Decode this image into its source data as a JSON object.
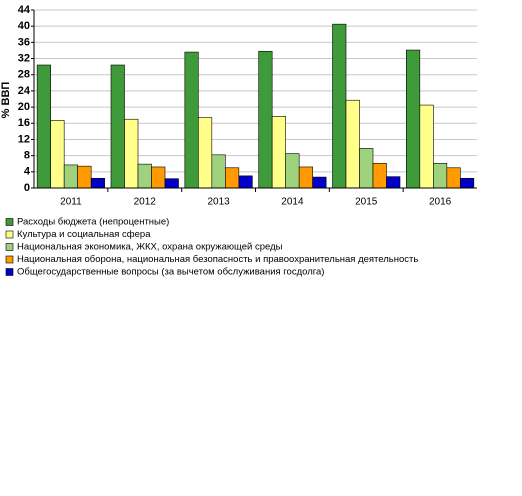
{
  "chart_data": {
    "type": "bar",
    "y_label": "% ВВП",
    "categories": [
      "2011",
      "2012",
      "2013",
      "2014",
      "2015",
      "2016"
    ],
    "series": [
      {
        "name": "Расходы бюджета (непроцентные)",
        "color": "#3f9a3a",
        "values": [
          30.4,
          30.4,
          33.6,
          33.8,
          40.5,
          34.1
        ]
      },
      {
        "name": "Культура и социальная сфера",
        "color": "#ffff8a",
        "values": [
          16.7,
          17.0,
          17.4,
          17.7,
          21.7,
          20.5
        ]
      },
      {
        "name": "Национальная экономика, ЖКХ, охрана окружающей среды",
        "color": "#9fd27d",
        "values": [
          5.7,
          5.9,
          8.2,
          8.5,
          9.8,
          6.1
        ]
      },
      {
        "name": "Национальная оборона, национальная безопасность и правоохранительная деятельность",
        "color": "#ff9a00",
        "values": [
          5.4,
          5.2,
          5.0,
          5.2,
          6.1,
          5.0
        ]
      },
      {
        "name": "Общегосударственные вопросы (за вычетом обслуживания госдолга)",
        "color": "#0000c8",
        "values": [
          2.4,
          2.3,
          3.0,
          2.7,
          2.8,
          2.4
        ]
      }
    ],
    "ylim": [
      0,
      44
    ],
    "yticks": [
      0,
      4,
      8,
      12,
      16,
      20,
      24,
      28,
      32,
      36,
      40,
      44
    ],
    "grid": true
  }
}
